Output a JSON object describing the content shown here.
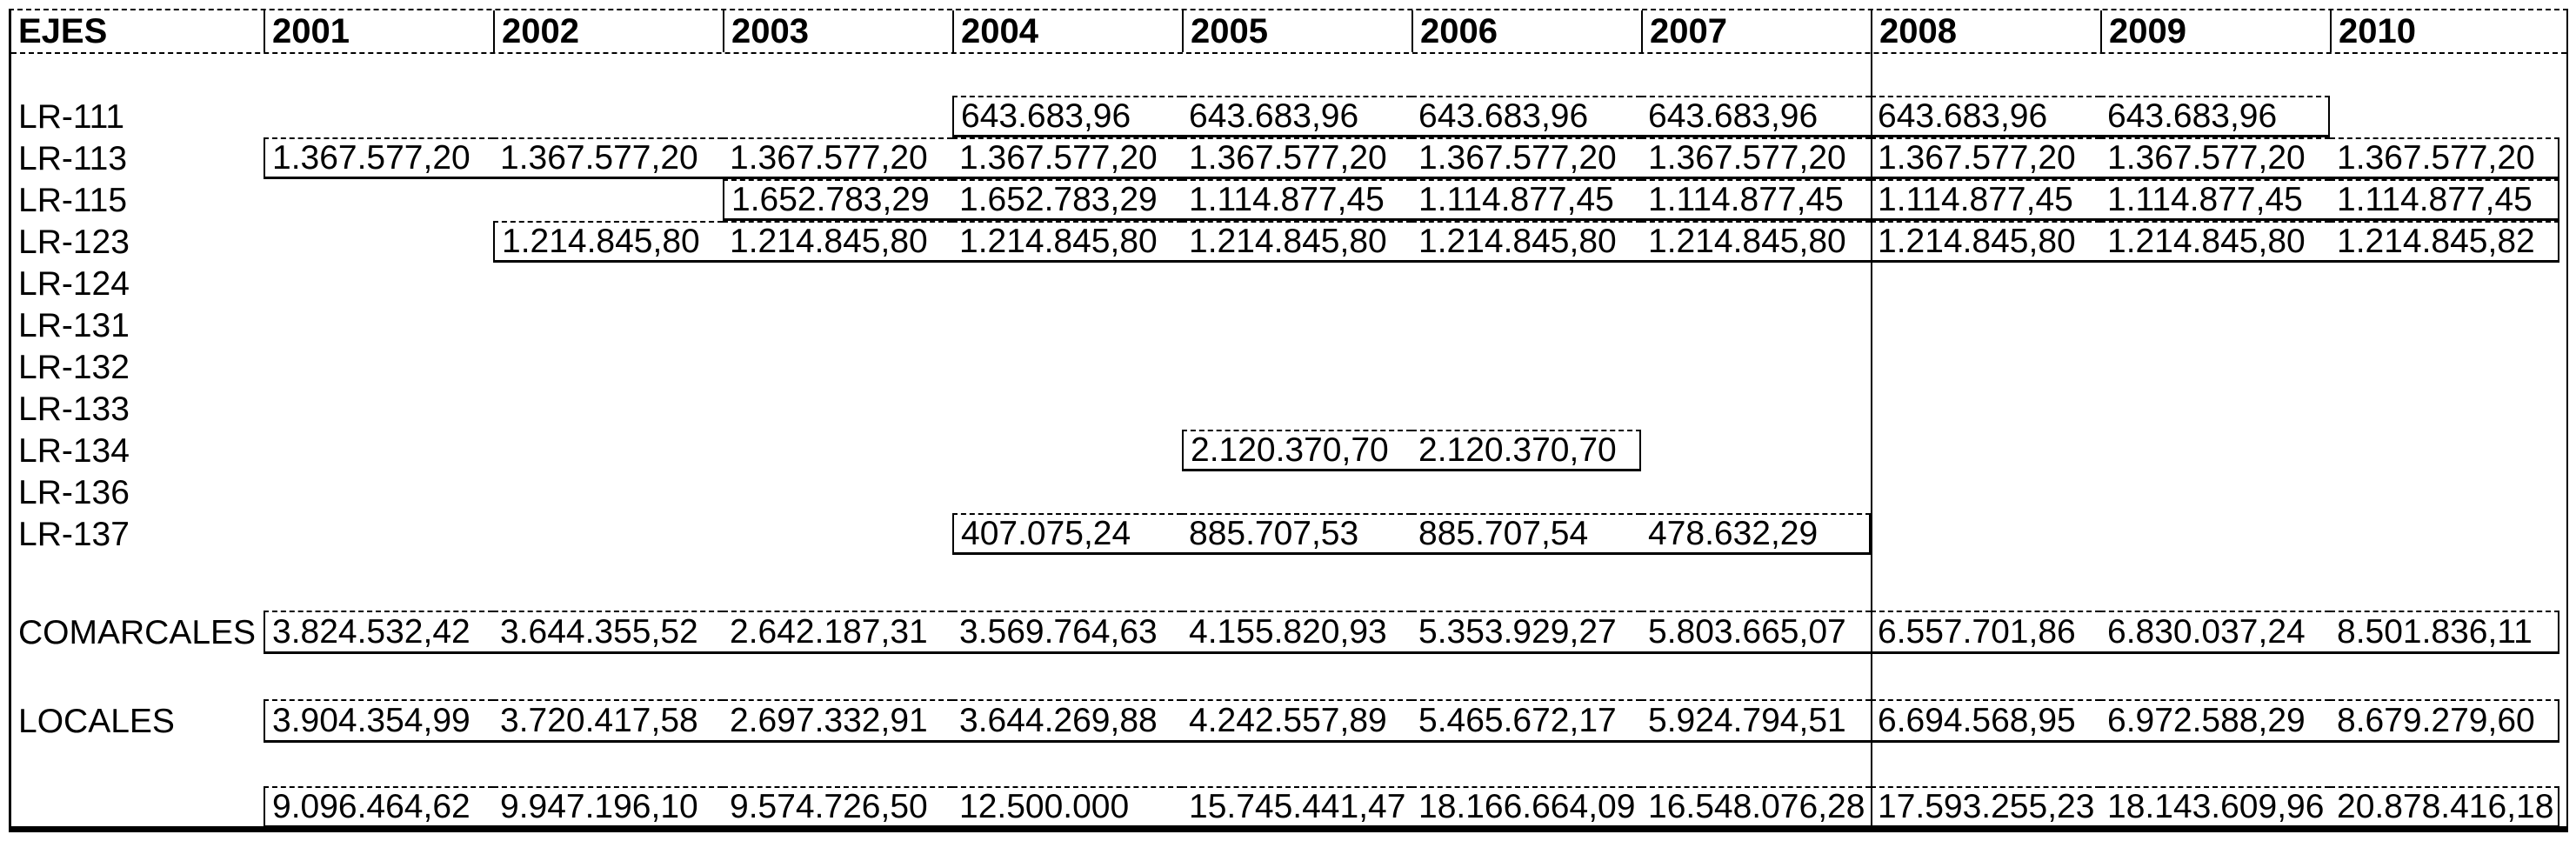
{
  "colors": {
    "ink": "#000000",
    "paper": "#ffffff"
  },
  "table": {
    "header": {
      "axis_label": "EJES",
      "years": [
        "2001",
        "2002",
        "2003",
        "2004",
        "2005",
        "2006",
        "2007",
        "2008",
        "2009",
        "2010"
      ]
    },
    "rows": [
      {
        "label": "LR-111",
        "values": [
          "",
          "",
          "",
          "643.683,96",
          "643.683,96",
          "643.683,96",
          "643.683,96",
          "643.683,96",
          "643.683,96",
          ""
        ]
      },
      {
        "label": "LR-113",
        "values": [
          "1.367.577,20",
          "1.367.577,20",
          "1.367.577,20",
          "1.367.577,20",
          "1.367.577,20",
          "1.367.577,20",
          "1.367.577,20",
          "1.367.577,20",
          "1.367.577,20",
          "1.367.577,20"
        ]
      },
      {
        "label": "LR-115",
        "values": [
          "",
          "",
          "1.652.783,29",
          "1.652.783,29",
          "1.114.877,45",
          "1.114.877,45",
          "1.114.877,45",
          "1.114.877,45",
          "1.114.877,45",
          "1.114.877,45"
        ]
      },
      {
        "label": "LR-123",
        "values": [
          "",
          "1.214.845,80",
          "1.214.845,80",
          "1.214.845,80",
          "1.214.845,80",
          "1.214.845,80",
          "1.214.845,80",
          "1.214.845,80",
          "1.214.845,80",
          "1.214.845,82"
        ]
      },
      {
        "label": "LR-124",
        "values": [
          "",
          "",
          "",
          "",
          "",
          "",
          "",
          "",
          "",
          ""
        ]
      },
      {
        "label": "LR-131",
        "values": [
          "",
          "",
          "",
          "",
          "",
          "",
          "",
          "",
          "",
          ""
        ]
      },
      {
        "label": "LR-132",
        "values": [
          "",
          "",
          "",
          "",
          "",
          "",
          "",
          "",
          "",
          ""
        ]
      },
      {
        "label": "LR-133",
        "values": [
          "",
          "",
          "",
          "",
          "",
          "",
          "",
          "",
          "",
          ""
        ]
      },
      {
        "label": "LR-134",
        "values": [
          "",
          "",
          "",
          "",
          "2.120.370,70",
          "2.120.370,70",
          "",
          "",
          "",
          ""
        ]
      },
      {
        "label": "LR-136",
        "values": [
          "",
          "",
          "",
          "",
          "",
          "",
          "",
          "",
          "",
          ""
        ]
      },
      {
        "label": "LR-137",
        "values": [
          "",
          "",
          "",
          "407.075,24",
          "885.707,53",
          "885.707,54",
          "478.632,29",
          "",
          "",
          ""
        ]
      },
      {
        "label": "COMARCALES",
        "values": [
          "3.824.532,42",
          "3.644.355,52",
          "2.642.187,31",
          "3.569.764,63",
          "4.155.820,93",
          "5.353.929,27",
          "5.803.665,07",
          "6.557.701,86",
          "6.830.037,24",
          "8.501.836,11"
        ]
      },
      {
        "label": "LOCALES",
        "values": [
          "3.904.354,99",
          "3.720.417,58",
          "2.697.332,91",
          "3.644.269,88",
          "4.242.557,89",
          "5.465.672,17",
          "5.924.794,51",
          "6.694.568,95",
          "6.972.588,29",
          "8.679.279,60"
        ]
      },
      {
        "label": "",
        "values": [
          "9.096.464,62",
          "9.947.196,10",
          "9.574.726,50",
          "12.500.000",
          "15.745.441,47",
          "18.166.664,09",
          "16.548.076,28",
          "17.593.255,23",
          "18.143.609,96",
          "20.878.416,18"
        ]
      }
    ]
  }
}
